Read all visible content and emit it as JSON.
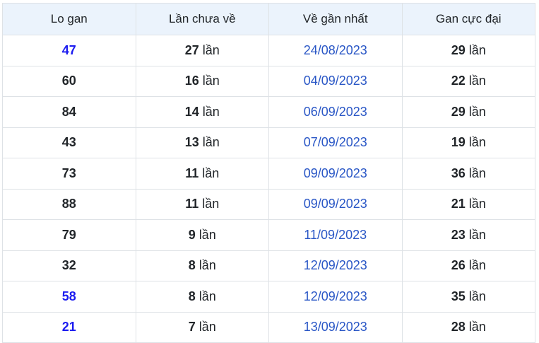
{
  "table": {
    "columns": [
      {
        "label": "Lo gan"
      },
      {
        "label": "Lần chưa về"
      },
      {
        "label": "Về gần nhất"
      },
      {
        "label": "Gan cực đại"
      }
    ],
    "times_suffix": "lần",
    "rows": [
      {
        "lo_gan": "47",
        "missed": "27",
        "last_seen": "24/08/2023",
        "max_gap": "29",
        "highlighted": true
      },
      {
        "lo_gan": "60",
        "missed": "16",
        "last_seen": "04/09/2023",
        "max_gap": "22",
        "highlighted": false
      },
      {
        "lo_gan": "84",
        "missed": "14",
        "last_seen": "06/09/2023",
        "max_gap": "29",
        "highlighted": false
      },
      {
        "lo_gan": "43",
        "missed": "13",
        "last_seen": "07/09/2023",
        "max_gap": "19",
        "highlighted": false
      },
      {
        "lo_gan": "73",
        "missed": "11",
        "last_seen": "09/09/2023",
        "max_gap": "36",
        "highlighted": false
      },
      {
        "lo_gan": "88",
        "missed": "11",
        "last_seen": "09/09/2023",
        "max_gap": "21",
        "highlighted": false
      },
      {
        "lo_gan": "79",
        "missed": "9",
        "last_seen": "11/09/2023",
        "max_gap": "23",
        "highlighted": false
      },
      {
        "lo_gan": "32",
        "missed": "8",
        "last_seen": "12/09/2023",
        "max_gap": "26",
        "highlighted": false
      },
      {
        "lo_gan": "58",
        "missed": "8",
        "last_seen": "12/09/2023",
        "max_gap": "35",
        "highlighted": true
      },
      {
        "lo_gan": "21",
        "missed": "7",
        "last_seen": "13/09/2023",
        "max_gap": "28",
        "highlighted": true
      }
    ]
  },
  "colors": {
    "header_bg": "#ebf3fc",
    "border": "#dee2e6",
    "text": "#212529",
    "highlight_blue": "#1c1cf0",
    "date_blue": "#2a57c6"
  }
}
